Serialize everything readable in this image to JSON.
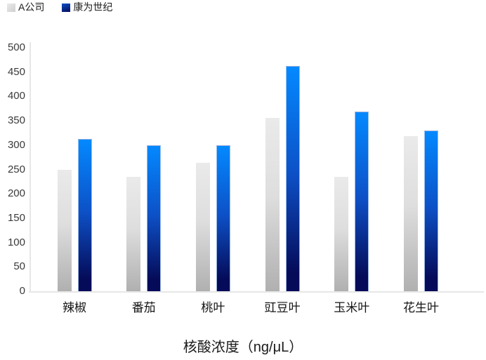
{
  "chart_data": {
    "type": "bar",
    "title": "",
    "xlabel": "核酸浓度（ng/μL）",
    "ylabel": "",
    "categories": [
      "辣椒",
      "番茄",
      "桃叶",
      "豇豆叶",
      "玉米叶",
      "花生叶"
    ],
    "series": [
      {
        "name": "A公司",
        "values": [
          250,
          235,
          264,
          356,
          235,
          318
        ]
      },
      {
        "name": "康为世纪",
        "values": [
          313,
          300,
          300,
          463,
          369,
          330
        ]
      }
    ],
    "ylim": [
      0,
      500
    ],
    "ytick_step": 50,
    "ytick_labels": [
      "0",
      "50",
      "100",
      "150",
      "200",
      "250",
      "300",
      "350",
      "400",
      "450",
      "500"
    ],
    "grid": false,
    "legend_position": "top-left"
  },
  "colors": {
    "bar_a_top": "#eaeaea",
    "bar_a_bottom": "#b0b0b0",
    "bar_a_legend": "#cfcfcf",
    "bar_b_top": "#0489ff",
    "bar_b_mid": "#0d50c6",
    "bar_b_bottom": "#050b58",
    "axis_line": "#e7e7e7",
    "text": "#1a1a1a"
  }
}
